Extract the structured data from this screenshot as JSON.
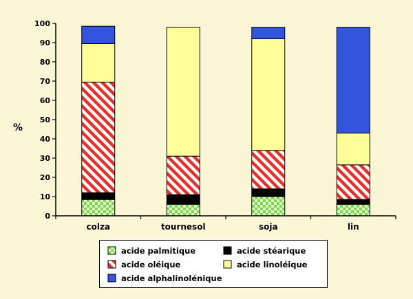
{
  "colors": {
    "page_bg": "#fbf7d6",
    "palmitique": "#7fd84a",
    "palmitique_check": "#ffffff",
    "stearique": "#000000",
    "oleique_stripe": "#e8302a",
    "oleique_bg": "#ffffff",
    "linoleique": "#ffff99",
    "alphalinolenique": "#3355dd"
  },
  "chart_data": {
    "type": "bar",
    "stacked": true,
    "ylabel": "%",
    "ylim": [
      0,
      100
    ],
    "yticks": [
      "0",
      "10",
      "20",
      "30",
      "40",
      "50",
      "60",
      "70",
      "80",
      "90",
      "100"
    ],
    "categories": [
      "colza",
      "tournesol",
      "soja",
      "lin"
    ],
    "series": [
      {
        "name": "acide palmitique",
        "key": "palmitique",
        "pattern": "checker",
        "values": [
          8.5,
          6,
          10,
          6
        ]
      },
      {
        "name": "acide stéarique",
        "key": "stearique",
        "pattern": "solid",
        "values": [
          3.5,
          5,
          4,
          2.5
        ]
      },
      {
        "name": "acide oléique",
        "key": "oleique",
        "pattern": "hatch",
        "values": [
          57.5,
          20,
          20,
          18
        ]
      },
      {
        "name": "acide linoléique",
        "key": "linoleique",
        "pattern": "solid",
        "values": [
          20,
          67,
          58,
          16.5
        ]
      },
      {
        "name": "acide alphalinolénique",
        "key": "alphalinolenique",
        "pattern": "solid",
        "values": [
          9,
          0,
          6,
          55
        ]
      }
    ],
    "grid": false,
    "legend_position": "bottom"
  }
}
